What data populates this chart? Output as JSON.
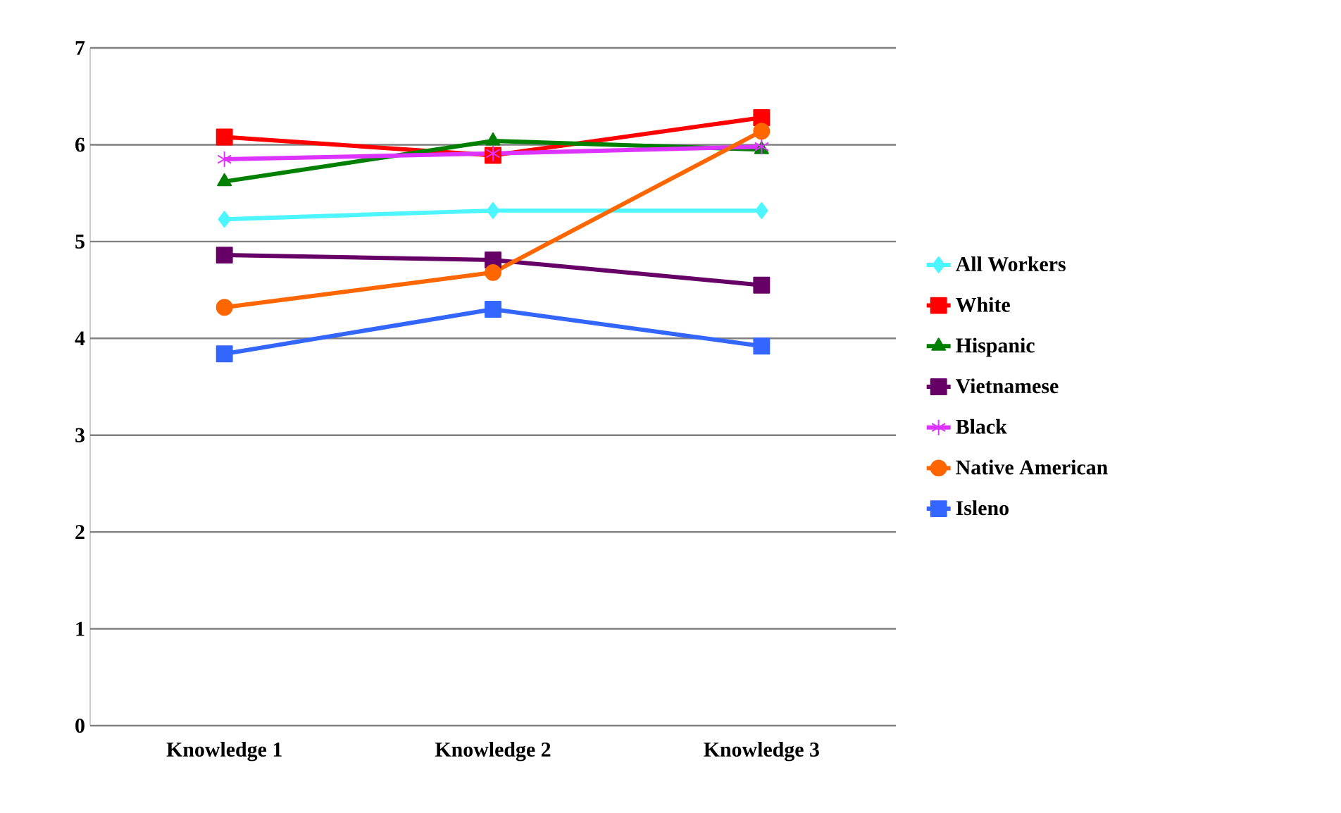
{
  "chart_data": {
    "type": "line",
    "categories": [
      "Knowledge 1",
      "Knowledge 2",
      "Knowledge 3"
    ],
    "ylim": [
      0,
      7
    ],
    "yticks": [
      0,
      1,
      2,
      3,
      4,
      5,
      6,
      7
    ],
    "grid": "y",
    "legend": "right",
    "series": [
      {
        "name": "All Workers",
        "color": "#4df5ff",
        "marker": "diamond",
        "values": [
          5.23,
          5.32,
          5.32
        ]
      },
      {
        "name": "White",
        "color": "#ff0000",
        "marker": "square",
        "values": [
          6.08,
          5.89,
          6.28
        ]
      },
      {
        "name": "Hispanic",
        "color": "#008000",
        "marker": "triangle",
        "values": [
          5.62,
          6.04,
          5.95
        ]
      },
      {
        "name": "Vietnamese",
        "color": "#660066",
        "marker": "square",
        "values": [
          4.86,
          4.81,
          4.55
        ]
      },
      {
        "name": "Black",
        "color": "#dd33ff",
        "marker": "cross",
        "values": [
          5.85,
          5.91,
          5.98
        ]
      },
      {
        "name": "Native American",
        "color": "#ff6600",
        "marker": "circle",
        "values": [
          4.32,
          4.68,
          6.14
        ]
      },
      {
        "name": "Isleno",
        "color": "#3366ff",
        "marker": "square",
        "values": [
          3.84,
          4.3,
          3.92
        ]
      }
    ]
  }
}
